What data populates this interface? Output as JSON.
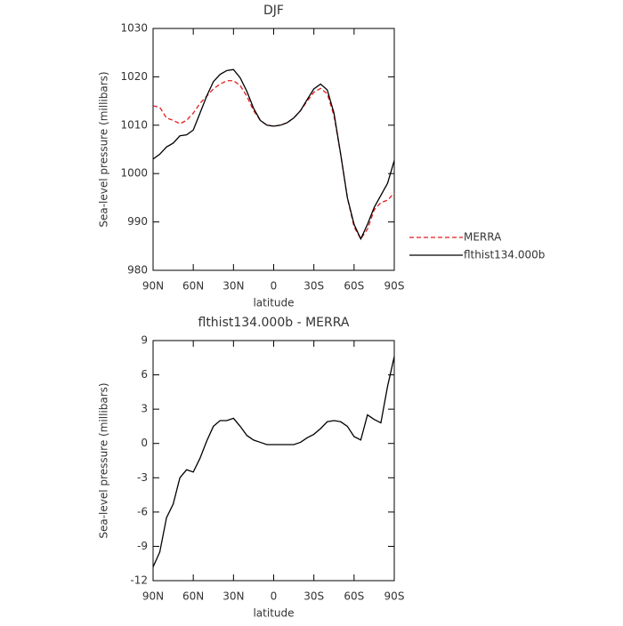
{
  "chart_data": [
    {
      "type": "line",
      "title": "DJF",
      "xlabel": "latitude",
      "ylabel": "Sea-level pressure (millibars)",
      "x": [
        90,
        85,
        80,
        75,
        70,
        65,
        60,
        55,
        50,
        45,
        40,
        35,
        30,
        25,
        20,
        15,
        10,
        5,
        0,
        -5,
        -10,
        -15,
        -20,
        -25,
        -30,
        -35,
        -40,
        -45,
        -50,
        -55,
        -60,
        -65,
        -70,
        -75,
        -80,
        -85,
        -90
      ],
      "series": [
        {
          "name": "MERRA",
          "color": "#e31a1c",
          "dash": true,
          "values": [
            1014,
            1013.7,
            1011.5,
            1011,
            1010.3,
            1011,
            1012.5,
            1014.5,
            1016,
            1017.5,
            1018.5,
            1019.2,
            1019.2,
            1018.2,
            1016,
            1013,
            1011,
            1010,
            1009.8,
            1010,
            1010.5,
            1011.5,
            1013,
            1015,
            1016.8,
            1017.6,
            1016.5,
            1012,
            1004,
            995,
            989,
            986.5,
            988.5,
            992.5,
            994,
            994.5,
            996
          ]
        },
        {
          "name": "flthist134.000b",
          "color": "#000000",
          "dash": false,
          "values": [
            1003,
            1004,
            1005.5,
            1006.3,
            1007.8,
            1008,
            1009,
            1012.5,
            1016,
            1019,
            1020.5,
            1021.3,
            1021.5,
            1019.8,
            1017,
            1013.5,
            1011,
            1010,
            1009.8,
            1010,
            1010.5,
            1011.5,
            1013,
            1015.3,
            1017.5,
            1018.5,
            1017.3,
            1012.5,
            1004,
            995,
            989.5,
            986.5,
            989.5,
            993,
            995.5,
            998,
            1002.7
          ]
        }
      ],
      "xlim": [
        90,
        -90
      ],
      "xticks": [
        {
          "value": 90,
          "label": "90N"
        },
        {
          "value": 60,
          "label": "60N"
        },
        {
          "value": 30,
          "label": "30N"
        },
        0,
        {
          "value": -30,
          "label": "30S"
        },
        {
          "value": -60,
          "label": "60S"
        },
        {
          "value": -90,
          "label": "90S"
        }
      ],
      "ylim": [
        980,
        1030
      ],
      "yticks": [
        980,
        990,
        1000,
        1010,
        1020,
        1030
      ],
      "legend": "right"
    },
    {
      "type": "line",
      "title": "flthist134.000b - MERRA",
      "xlabel": "latitude",
      "ylabel": "Sea-level pressure (millibars)",
      "x": [
        90,
        85,
        80,
        75,
        70,
        65,
        60,
        55,
        50,
        45,
        40,
        35,
        30,
        25,
        20,
        15,
        10,
        5,
        0,
        -5,
        -10,
        -15,
        -20,
        -25,
        -30,
        -35,
        -40,
        -45,
        -50,
        -55,
        -60,
        -65,
        -70,
        -75,
        -80,
        -85,
        -90
      ],
      "color": "#000000",
      "values": [
        -10.8,
        -9.5,
        -6.5,
        -5.3,
        -3,
        -2.3,
        -2.5,
        -1.3,
        0.2,
        1.5,
        2,
        2,
        2.2,
        1.5,
        0.7,
        0.3,
        0.1,
        -0.1,
        -0.1,
        -0.1,
        -0.1,
        -0.1,
        0.1,
        0.5,
        0.8,
        1.3,
        1.9,
        2,
        1.9,
        1.5,
        0.6,
        0.3,
        2.5,
        2.1,
        1.8,
        5,
        7.6
      ],
      "xlim": [
        90,
        -90
      ],
      "xticks": [
        {
          "value": 90,
          "label": "90N"
        },
        {
          "value": 60,
          "label": "60N"
        },
        {
          "value": 30,
          "label": "30N"
        },
        0,
        {
          "value": -30,
          "label": "30S"
        },
        {
          "value": -60,
          "label": "60S"
        },
        {
          "value": -90,
          "label": "90S"
        }
      ],
      "ylim": [
        -12,
        9
      ],
      "yticks": [
        -12,
        -9,
        -6,
        -3,
        0,
        3,
        6,
        9
      ]
    }
  ]
}
